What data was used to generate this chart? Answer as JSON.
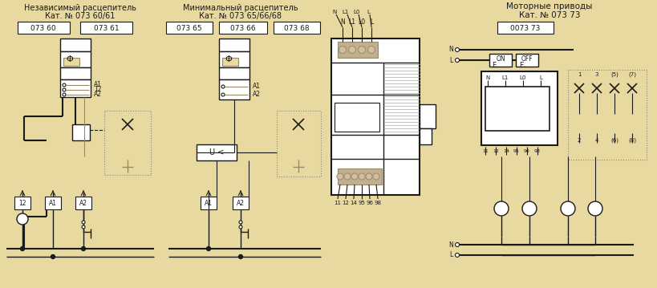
{
  "bg_color": "#e8d9a0",
  "line_color": "#1a1a1a",
  "box_color": "#ffffff",
  "gray_color": "#9a8a6a",
  "dashed_color": "#888888",
  "title1": "Независимый расцепитель",
  "subtitle1": "Кат. № 073 60/61",
  "title2": "Минимальный расцепитель",
  "subtitle2": "Кат. № 073 65/66/68",
  "title3": "Моторные приводы",
  "subtitle3": "Кат. № 073 73",
  "label1a": "073 60",
  "label1b": "073 61",
  "label2a": "073 65",
  "label2b": "073 66",
  "label2c": "073 68",
  "label3": "0073 73",
  "font_size_title": 7.0,
  "font_size_label": 6.5,
  "font_size_small": 5.5
}
